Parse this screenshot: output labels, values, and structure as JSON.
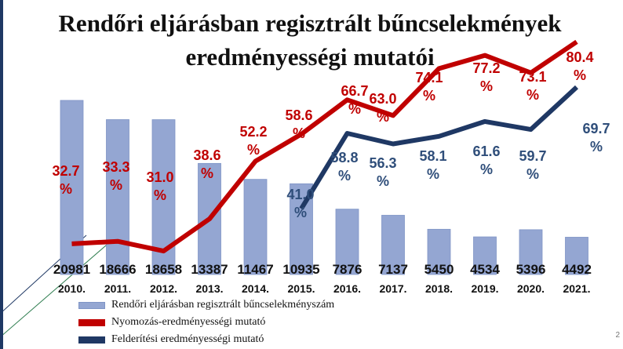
{
  "slide": {
    "title_line1": "Rendőri eljárásban regisztrált bűncselekmények",
    "title_line2": "eredményességi mutatói",
    "page_number": "2"
  },
  "colors": {
    "bar": "#94a6d2",
    "bar_edge": "#7f95c6",
    "red": "#c00000",
    "navy": "#1f3864",
    "decor_green": "#2e7d4f",
    "decor_navy": "#1f3864"
  },
  "chart_data": {
    "type": "bar",
    "categories": [
      "2010. év",
      "2011. év",
      "2012. év",
      "2013. év",
      "2014. év",
      "2015. év",
      "2016. év",
      "2017. év",
      "2018. év",
      "2019. év",
      "2020. év",
      "2021. év"
    ],
    "categories_visible": [
      "2010.",
      "2011.",
      "2012.",
      "2013.",
      "2014.",
      "2015.",
      "2016.",
      "2017.",
      "2018.",
      "2019.",
      "2020.",
      "2021."
    ],
    "bars": {
      "name": "Rendőri eljárásban regisztrált bűncselekményszám",
      "values": [
        20981,
        18666,
        18658,
        13387,
        11467,
        10935,
        7876,
        7137,
        5450,
        4534,
        5396,
        4492
      ],
      "labels": [
        "20981",
        "18666",
        "18658",
        "13387",
        "11467",
        "10935",
        "7876",
        "7137",
        "5450",
        "4534",
        "5396",
        "4492"
      ]
    },
    "line_red": {
      "name": "Nyomozás-eredményességi mutató",
      "values": [
        32.7,
        33.3,
        31.0,
        38.6,
        52.2,
        58.6,
        66.7,
        63.0,
        74.1,
        77.2,
        73.1,
        80.4
      ],
      "labels": [
        "32.7",
        "33.3",
        "31.0",
        "38.6",
        "52.2",
        "58.6",
        "66.7",
        "63.0",
        "74.1",
        "77.2",
        "73.1",
        "80.4"
      ]
    },
    "line_navy": {
      "name": "Felderítési eredményességi mutató",
      "start_index": 5,
      "values": [
        41.0,
        58.8,
        56.3,
        58.1,
        61.6,
        59.7,
        69.7
      ],
      "labels": [
        "41.0",
        "58.8",
        "56.3",
        "58.1",
        "61.6",
        "59.7",
        "69.7"
      ]
    },
    "percent_sign": "%",
    "legend": {
      "position": "bottom-left",
      "entries": [
        "Rendőri eljárásban regisztrált bűncselekményszám",
        "Nyomozás-eredményességi mutató",
        "Felderítési eredményességi mutató"
      ]
    },
    "grid": false
  }
}
